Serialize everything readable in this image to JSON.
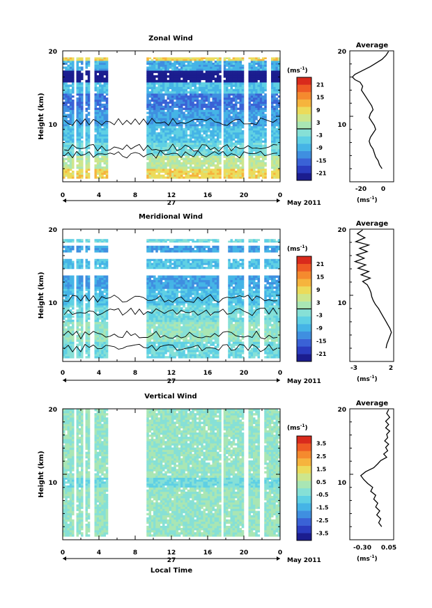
{
  "colorbar_colors": [
    "#1b1d8f",
    "#2a3cbf",
    "#3a62d6",
    "#3f8fe0",
    "#45b4e6",
    "#5fd0e4",
    "#86e0d6",
    "#a9e6b4",
    "#cde68c",
    "#ecdb5a",
    "#f6b43d",
    "#f58a2e",
    "#ee5a24",
    "#d92a1c"
  ],
  "panels": [
    {
      "title": "Zonal Wind",
      "ylabel": "Height (km)",
      "yticks": [
        "20",
        "10"
      ],
      "xticks": [
        "0",
        "4",
        "8",
        "12",
        "16",
        "20",
        "0"
      ],
      "date_day": "27",
      "date_month": "May 2011",
      "cb_unit": "(ms",
      "cb_unit_exp": "-1",
      "cb_unit_close": ")",
      "cb_ticks": [
        "21",
        "15",
        "9",
        "3",
        "-3",
        "-9",
        "-15",
        "-21"
      ],
      "avg_title": "Average",
      "avg_yticks": [
        "20",
        "10"
      ],
      "avg_xticks": [
        "-20",
        "0"
      ],
      "avg_unit": "(ms",
      "avg_unit_exp": "-1",
      "avg_unit_close": ")"
    },
    {
      "title": "Meridional Wind",
      "ylabel": "Height (km)",
      "yticks": [
        "20",
        "10"
      ],
      "xticks": [
        "0",
        "4",
        "8",
        "12",
        "16",
        "20",
        "0"
      ],
      "date_day": "27",
      "date_month": "May 2011",
      "cb_unit": "(ms",
      "cb_unit_exp": "-1",
      "cb_unit_close": ")",
      "cb_ticks": [
        "21",
        "15",
        "9",
        "3",
        "-3",
        "-9",
        "-15",
        "-21"
      ],
      "avg_title": "Average",
      "avg_yticks": [
        "20",
        "10"
      ],
      "avg_xticks": [
        "-3",
        "2"
      ],
      "avg_unit": "(ms",
      "avg_unit_exp": "-1",
      "avg_unit_close": ")"
    },
    {
      "title": "Vertical Wind",
      "ylabel": "Height (km)",
      "yticks": [
        "20",
        "10"
      ],
      "xticks": [
        "0",
        "4",
        "8",
        "12",
        "16",
        "20",
        "0"
      ],
      "date_day": "27",
      "date_month": "May 2011",
      "cb_unit": "(ms",
      "cb_unit_exp": "-1",
      "cb_unit_close": ")",
      "cb_ticks": [
        "3.5",
        "2.5",
        "1.5",
        "0.5",
        "-0.5",
        "-1.5",
        "-2.5",
        "-3.5"
      ],
      "avg_title": "Average",
      "avg_yticks": [
        "20",
        "10"
      ],
      "avg_xticks": [
        "-0.30",
        "0.05"
      ],
      "avg_unit": "(ms",
      "avg_unit_exp": "-1",
      "avg_unit_close": ")"
    }
  ],
  "xlabel": "Local Time",
  "chart_data": [
    {
      "type": "heatmap",
      "title": "Zonal Wind",
      "xlabel": "Local Time",
      "ylabel": "Height (km)",
      "x_range_hours": [
        0,
        24
      ],
      "ylim": [
        0,
        20
      ],
      "colorbar_range": [
        -21,
        21
      ],
      "colorbar_unit": "ms-1",
      "date": "27 May 2011",
      "data_gaps_hours": [
        [
          1.2,
          1.5
        ],
        [
          2.2,
          2.4
        ],
        [
          3.1,
          3.4
        ],
        [
          4.9,
          9.3
        ],
        [
          17.5,
          17.8
        ],
        [
          20.0,
          20.4
        ],
        [
          22.6,
          23.0
        ]
      ],
      "height_bands_km": [
        {
          "from": 0.5,
          "to": 2.0,
          "value": 8
        },
        {
          "from": 2.0,
          "to": 4.0,
          "value": 3
        },
        {
          "from": 4.0,
          "to": 6.0,
          "value": -3
        },
        {
          "from": 6.0,
          "to": 8.5,
          "value": -6
        },
        {
          "from": 8.5,
          "to": 11.0,
          "value": -9
        },
        {
          "from": 11.0,
          "to": 13.5,
          "value": -12
        },
        {
          "from": 13.5,
          "to": 15.2,
          "value": -6
        },
        {
          "from": 15.2,
          "to": 17.0,
          "value": -21
        },
        {
          "from": 17.0,
          "to": 18.5,
          "value": -8
        },
        {
          "from": 18.5,
          "to": 19.0,
          "value": 8
        }
      ]
    },
    {
      "type": "line",
      "title": "Average",
      "subplot_of": "Zonal Wind",
      "xlabel": "ms-1",
      "ylim": [
        0,
        20
      ],
      "xlim": [
        -28,
        6
      ],
      "x": [
        2,
        0,
        -3,
        -8,
        -12,
        -16,
        -20,
        -24,
        -26,
        -24,
        -20,
        -18,
        -19,
        -17,
        -15,
        -13,
        -11,
        -10,
        -12,
        -13,
        -11,
        -9,
        -8,
        -10,
        -12,
        -13,
        -12,
        -10,
        -9,
        -8,
        -6,
        -5,
        -3
      ],
      "y": [
        19.9,
        19.3,
        18.7,
        18.1,
        17.6,
        17.2,
        16.8,
        16.4,
        16.0,
        15.6,
        15.2,
        14.6,
        14.0,
        13.4,
        12.8,
        12.2,
        11.6,
        11.0,
        10.4,
        9.8,
        9.2,
        8.6,
        8.0,
        7.4,
        6.8,
        6.2,
        5.6,
        5.0,
        4.4,
        3.8,
        3.2,
        2.6,
        2.0
      ]
    },
    {
      "type": "heatmap",
      "title": "Meridional Wind",
      "xlabel": "Local Time",
      "ylabel": "Height (km)",
      "x_range_hours": [
        0,
        24
      ],
      "ylim": [
        0,
        20
      ],
      "colorbar_range": [
        -21,
        21
      ],
      "colorbar_unit": "ms-1",
      "date": "27 May 2011",
      "data_gaps_hours": [
        [
          1.2,
          1.5
        ],
        [
          2.2,
          2.4
        ],
        [
          3.1,
          3.4
        ],
        [
          4.9,
          9.3
        ],
        [
          17.2,
          18.2
        ],
        [
          20.0,
          20.4
        ],
        [
          21.8,
          22.2
        ]
      ],
      "height_bands_km": [
        {
          "from": 0.5,
          "to": 3.0,
          "value": -3
        },
        {
          "from": 3.0,
          "to": 6.0,
          "value": 0
        },
        {
          "from": 6.0,
          "to": 8.5,
          "value": -3
        },
        {
          "from": 8.5,
          "to": 11.0,
          "value": -6
        },
        {
          "from": 11.0,
          "to": 13.0,
          "value": -9
        },
        {
          "from": 14.0,
          "to": 15.5,
          "value": -6
        },
        {
          "from": 16.5,
          "to": 17.5,
          "value": -9
        },
        {
          "from": 18.0,
          "to": 18.5,
          "value": -3
        }
      ]
    },
    {
      "type": "line",
      "title": "Average",
      "subplot_of": "Meridional Wind",
      "xlabel": "ms-1",
      "ylim": [
        0,
        20
      ],
      "xlim": [
        -3.5,
        2.3
      ],
      "x": [
        -1.8,
        -2.5,
        -1.5,
        -2.7,
        -1.0,
        -2.2,
        -1.2,
        -2.6,
        -1.6,
        -2.8,
        -1.4,
        -2.4,
        -1.0,
        -2.0,
        -0.8,
        -1.8,
        -1.2,
        -0.9,
        -0.7,
        -0.6,
        -0.4,
        -0.1,
        0.3,
        0.6,
        0.9,
        1.2,
        1.5,
        1.8,
        2.0,
        1.8,
        1.6,
        1.4,
        1.3
      ],
      "y": [
        19.9,
        19.3,
        18.7,
        18.1,
        17.6,
        17.1,
        16.6,
        16.1,
        15.6,
        15.1,
        14.6,
        14.1,
        13.6,
        13.1,
        12.6,
        12.1,
        11.6,
        11.0,
        10.4,
        9.8,
        9.2,
        8.6,
        8.0,
        7.4,
        6.8,
        6.2,
        5.6,
        5.0,
        4.4,
        3.8,
        3.2,
        2.6,
        2.0
      ]
    },
    {
      "type": "heatmap",
      "title": "Vertical Wind",
      "xlabel": "Local Time",
      "ylabel": "Height (km)",
      "x_range_hours": [
        0,
        24
      ],
      "ylim": [
        0,
        20
      ],
      "colorbar_range": [
        -3.5,
        3.5
      ],
      "colorbar_unit": "ms-1",
      "date": "27 May 2011",
      "data_gaps_hours": [
        [
          1.2,
          1.5
        ],
        [
          2.2,
          2.4
        ],
        [
          3.1,
          3.4
        ],
        [
          4.9,
          9.3
        ],
        [
          17.5,
          17.8
        ],
        [
          20.0,
          20.4
        ],
        [
          21.8,
          22.2
        ]
      ],
      "height_bands_km": [
        {
          "from": 0.5,
          "to": 8.0,
          "value": 0.0
        },
        {
          "from": 8.0,
          "to": 9.5,
          "value": -0.5
        },
        {
          "from": 9.5,
          "to": 20.0,
          "value": 0.0
        }
      ]
    },
    {
      "type": "line",
      "title": "Average",
      "subplot_of": "Vertical Wind",
      "xlabel": "ms-1",
      "ylim": [
        0,
        20
      ],
      "xlim": [
        -0.36,
        0.08
      ],
      "x": [
        0.03,
        0.01,
        0.04,
        0.0,
        0.03,
        0.0,
        0.04,
        0.01,
        0.02,
        -0.01,
        0.03,
        0.0,
        0.02,
        -0.02,
        0.01,
        -0.05,
        -0.08,
        -0.12,
        -0.2,
        -0.25,
        -0.22,
        -0.18,
        -0.13,
        -0.15,
        -0.1,
        -0.12,
        -0.08,
        -0.1,
        -0.06,
        -0.09,
        -0.05,
        -0.07,
        -0.04
      ],
      "y": [
        19.9,
        19.3,
        18.7,
        18.1,
        17.6,
        17.1,
        16.6,
        16.1,
        15.6,
        15.1,
        14.6,
        14.1,
        13.6,
        13.1,
        12.6,
        12.1,
        11.6,
        11.0,
        10.4,
        9.8,
        9.2,
        8.6,
        8.0,
        7.4,
        6.8,
        6.2,
        5.6,
        5.0,
        4.4,
        3.8,
        3.2,
        2.6,
        2.0
      ]
    }
  ]
}
